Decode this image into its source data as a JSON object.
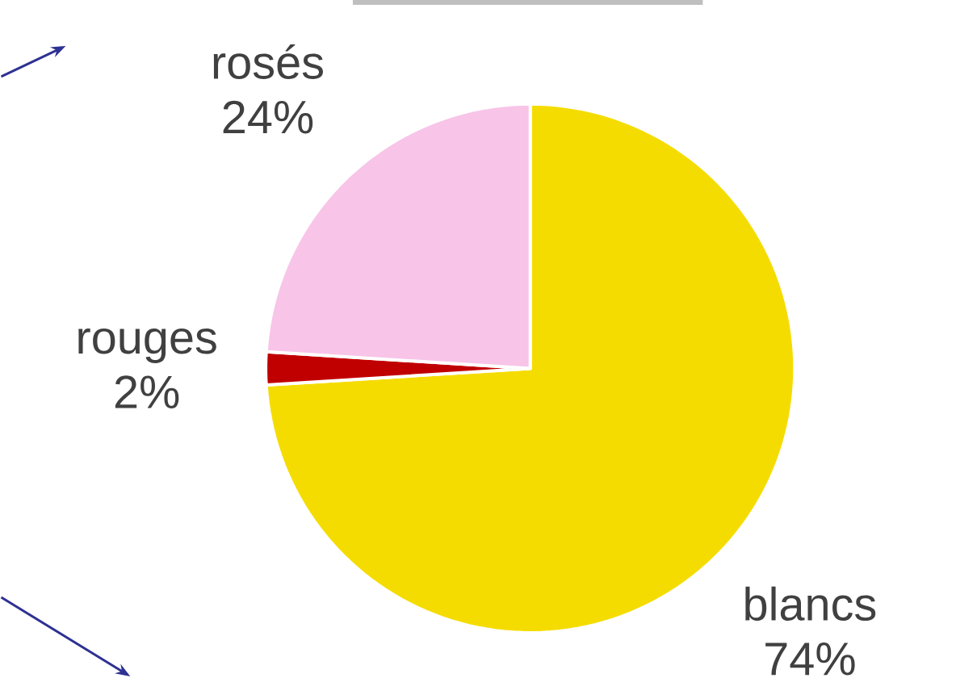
{
  "chart_data": {
    "type": "pie",
    "categories": [
      "blancs",
      "rouges",
      "rosés"
    ],
    "values": [
      74,
      2,
      24
    ],
    "value_labels": [
      "74%",
      "2%",
      "24%"
    ],
    "colors": [
      "#f5dc00",
      "#c00000",
      "#f8c4e8"
    ]
  }
}
